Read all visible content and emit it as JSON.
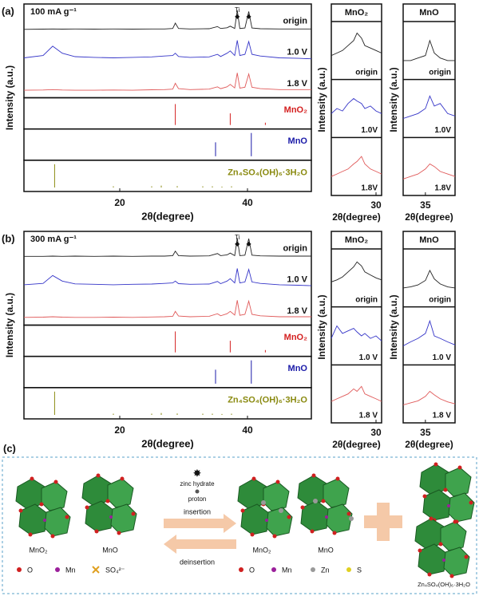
{
  "chart_data": [
    {
      "type": "line",
      "panel": "(a)",
      "title": "100 mA g⁻¹",
      "xlabel": "2θ(degree)",
      "ylabel": "Intensity (a.u.)",
      "xlim": [
        5,
        50
      ],
      "xticks": [
        20,
        40
      ],
      "ylim": [
        0,
        100
      ],
      "x": [
        5,
        8,
        9.5,
        11,
        13,
        16,
        19,
        22,
        25,
        27,
        28.3,
        28.7,
        29.2,
        31,
        34,
        35.3,
        35.8,
        36.8,
        37.3,
        38,
        38.4,
        38.8,
        39.6,
        40.2,
        40.7,
        42,
        45,
        48,
        50
      ],
      "series": [
        {
          "name": "origin",
          "color": "#222222",
          "values": [
            8,
            9,
            10,
            9,
            10,
            9,
            10,
            9,
            10,
            10,
            12,
            35,
            12,
            10,
            11,
            20,
            12,
            15,
            22,
            12,
            90,
            12,
            14,
            85,
            14,
            11,
            10,
            10,
            10
          ]
        },
        {
          "name": "1.0 V",
          "color": "#3535c8",
          "values": [
            20,
            30,
            70,
            40,
            25,
            22,
            20,
            22,
            24,
            28,
            30,
            40,
            26,
            22,
            24,
            35,
            26,
            40,
            50,
            30,
            95,
            30,
            35,
            90,
            35,
            28,
            20,
            18,
            16
          ]
        },
        {
          "name": "1.8 V",
          "color": "#e05a5a",
          "values": [
            15,
            16,
            18,
            16,
            15,
            15,
            16,
            15,
            17,
            18,
            20,
            45,
            22,
            18,
            20,
            30,
            22,
            30,
            40,
            25,
            90,
            24,
            28,
            85,
            28,
            22,
            18,
            18,
            18
          ]
        }
      ],
      "references": [
        {
          "name": "MnO₂",
          "color": "#d42020",
          "x": [
            28.7,
            37.3,
            42.8
          ],
          "values": [
            90,
            50,
            10
          ]
        },
        {
          "name": "MnO",
          "color": "#1a1aa8",
          "x": [
            35,
            40.6
          ],
          "values": [
            60,
            100
          ]
        },
        {
          "name": "Zn₄SO₄(OH)₆·3H₂O",
          "color": "#8a8a10",
          "x": [
            9.8,
            19,
            25,
            26.5,
            29,
            33,
            34.5,
            36,
            37.5
          ],
          "values": [
            100,
            5,
            5,
            8,
            6,
            5,
            5,
            4,
            5
          ]
        }
      ],
      "annotations": [
        {
          "text": "Ti",
          "x": 38.4
        },
        {
          "text": "◆",
          "x": 38.4
        },
        {
          "text": "◆",
          "x": 40.2
        }
      ]
    },
    {
      "type": "line",
      "title": "MnO₂",
      "xlabel": "2θ(degree)",
      "ylabel": "Intensity (a.u.)",
      "xlim": [
        26,
        30.5
      ],
      "xticks": [
        30
      ],
      "ylim": [
        0,
        100
      ],
      "x": [
        26,
        26.5,
        27,
        27.5,
        28,
        28.3,
        28.7,
        29,
        29.5,
        30,
        30.5
      ],
      "series": [
        {
          "name": "origin",
          "color": "#222222",
          "values": [
            40,
            45,
            50,
            60,
            70,
            85,
            75,
            60,
            55,
            50,
            45
          ]
        },
        {
          "name": "1.0V",
          "color": "#3535c8",
          "values": [
            40,
            50,
            45,
            60,
            70,
            65,
            60,
            50,
            55,
            45,
            40
          ]
        },
        {
          "name": "1.8V",
          "color": "#e05a5a",
          "values": [
            30,
            35,
            40,
            45,
            55,
            60,
            70,
            55,
            45,
            40,
            35
          ]
        }
      ]
    },
    {
      "type": "line",
      "title": "MnO",
      "xlabel": "2θ(degree)",
      "ylabel": "Intensity (a.u.)",
      "xlim": [
        33.5,
        37
      ],
      "xticks": [
        35
      ],
      "ylim": [
        0,
        100
      ],
      "x": [
        33.5,
        34,
        34.5,
        35,
        35.3,
        35.6,
        36,
        36.5,
        37
      ],
      "series": [
        {
          "name": "origin",
          "color": "#222222",
          "values": [
            30,
            30,
            35,
            40,
            70,
            45,
            35,
            30,
            30
          ]
        },
        {
          "name": "1.0V",
          "color": "#3535c8",
          "values": [
            30,
            35,
            40,
            50,
            75,
            55,
            60,
            40,
            35
          ]
        },
        {
          "name": "1.8V",
          "color": "#e05a5a",
          "values": [
            25,
            30,
            35,
            45,
            55,
            50,
            40,
            35,
            30
          ]
        }
      ]
    },
    {
      "type": "line",
      "panel": "(b)",
      "title": "300 mA g⁻¹",
      "xlabel": "2θ(degree)",
      "ylabel": "Intensity (a.u.)",
      "xlim": [
        5,
        50
      ],
      "xticks": [
        20,
        40
      ],
      "ylim": [
        0,
        100
      ],
      "x": [
        5,
        8,
        9.5,
        11,
        13,
        16,
        19,
        22,
        25,
        27,
        28.3,
        28.7,
        29.2,
        31,
        34,
        35.3,
        35.8,
        36.8,
        37.3,
        38,
        38.4,
        38.8,
        39.6,
        40.2,
        40.7,
        42,
        45,
        48,
        50
      ],
      "series": [
        {
          "name": "origin",
          "color": "#222222",
          "values": [
            10,
            10,
            11,
            10,
            11,
            10,
            11,
            10,
            11,
            11,
            13,
            32,
            13,
            11,
            12,
            22,
            13,
            16,
            24,
            13,
            88,
            13,
            15,
            86,
            15,
            12,
            11,
            11,
            11
          ]
        },
        {
          "name": "1.0 V",
          "color": "#3535c8",
          "values": [
            22,
            28,
            62,
            38,
            26,
            24,
            22,
            24,
            25,
            28,
            30,
            38,
            27,
            24,
            25,
            36,
            27,
            38,
            48,
            30,
            92,
            30,
            34,
            88,
            34,
            28,
            22,
            20,
            18
          ]
        },
        {
          "name": "1.8 V",
          "color": "#e05a5a",
          "values": [
            16,
            17,
            19,
            17,
            16,
            16,
            17,
            16,
            18,
            19,
            21,
            42,
            22,
            19,
            21,
            32,
            23,
            32,
            42,
            26,
            90,
            25,
            29,
            86,
            29,
            23,
            19,
            19,
            19
          ]
        }
      ],
      "references": [
        {
          "name": "MnO₂",
          "color": "#d42020",
          "x": [
            28.7,
            37.3,
            42.8
          ],
          "values": [
            90,
            50,
            10
          ]
        },
        {
          "name": "MnO",
          "color": "#1a1aa8",
          "x": [
            35,
            40.6
          ],
          "values": [
            60,
            100
          ]
        },
        {
          "name": "Zn₄SO₄(OH)₆·3H₂O",
          "color": "#8a8a10",
          "x": [
            9.8,
            19,
            25,
            26.5,
            29,
            33,
            34.5,
            36,
            37.5
          ],
          "values": [
            100,
            5,
            5,
            8,
            6,
            5,
            5,
            4,
            5
          ]
        }
      ],
      "annotations": [
        {
          "text": "Ti",
          "x": 38.4
        },
        {
          "text": "◆",
          "x": 38.4
        },
        {
          "text": "◆",
          "x": 40.2
        }
      ]
    },
    {
      "type": "line",
      "title": "MnO₂",
      "xlabel": "2θ(degree)",
      "ylabel": "Intensity (a.u.)",
      "xlim": [
        26,
        30.5
      ],
      "xticks": [
        30
      ],
      "ylim": [
        0,
        100
      ],
      "x": [
        26,
        26.5,
        27,
        27.5,
        28,
        28.3,
        28.7,
        29,
        29.5,
        30,
        30.5
      ],
      "series": [
        {
          "name": "origin",
          "color": "#222222",
          "values": [
            42,
            46,
            52,
            62,
            72,
            82,
            74,
            62,
            56,
            50,
            46
          ]
        },
        {
          "name": "1.0 V",
          "color": "#3535c8",
          "values": [
            45,
            70,
            55,
            60,
            65,
            58,
            50,
            55,
            45,
            50,
            40
          ]
        },
        {
          "name": "1.8 V",
          "color": "#e05a5a",
          "values": [
            35,
            40,
            45,
            50,
            60,
            55,
            65,
            50,
            45,
            40,
            35
          ]
        }
      ]
    },
    {
      "type": "line",
      "title": "MnO",
      "xlabel": "2θ(degree)",
      "ylabel": "Intensity (a.u.)",
      "xlim": [
        33.5,
        37
      ],
      "xticks": [
        35
      ],
      "ylim": [
        0,
        100
      ],
      "x": [
        33.5,
        34,
        34.5,
        35,
        35.3,
        35.6,
        36,
        36.5,
        37
      ],
      "series": [
        {
          "name": "origin",
          "color": "#222222",
          "values": [
            30,
            32,
            36,
            45,
            65,
            48,
            38,
            32,
            30
          ]
        },
        {
          "name": "1.0 V",
          "color": "#3535c8",
          "values": [
            30,
            38,
            45,
            55,
            80,
            50,
            45,
            38,
            32
          ]
        },
        {
          "name": "1.8 V",
          "color": "#e05a5a",
          "values": [
            28,
            32,
            36,
            45,
            55,
            48,
            40,
            34,
            30
          ]
        }
      ]
    }
  ],
  "diagram": {
    "panel": "(c)",
    "left": {
      "crystal1": "MnO₂",
      "crystal2": "MnO",
      "legend": [
        "O",
        "Mn",
        "SO₄²⁻"
      ]
    },
    "center": {
      "species1": "zinc hydrate",
      "species2": "proton",
      "forward": "insertion",
      "backward": "deinsertion"
    },
    "right": {
      "crystal1": "MnO₂",
      "crystal2": "MnO",
      "legend": [
        "O",
        "Mn",
        "Zn",
        "S"
      ],
      "product": "Zn₄SO₄(OH)₆·3H₂O"
    }
  }
}
